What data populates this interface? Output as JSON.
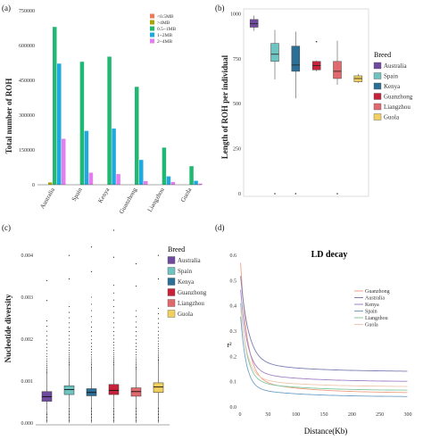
{
  "panels": {
    "a": {
      "label": "(a)",
      "chart_data": {
        "type": "bar",
        "ylabel": "Total number of ROH",
        "ylim": [
          0,
          750000
        ],
        "yticks": [
          "0",
          "150000",
          "300000",
          "450000",
          "600000",
          "750000"
        ],
        "categories": [
          "Australia",
          "Spain",
          "Kenya",
          "Guanzhong",
          "Liangzhou",
          "Guola"
        ],
        "series": [
          {
            "name": "<0.5MB",
            "color": "#f07a55",
            "values": [
              0,
              0,
              0,
              0,
              0,
              0
            ]
          },
          {
            "name": ">4MB",
            "color": "#a6a400",
            "values": [
              10000,
              0,
              0,
              0,
              0,
              0
            ]
          },
          {
            "name": "0.5~1MB",
            "color": "#20b873",
            "values": [
              680000,
              530000,
              552000,
              422000,
              160000,
              80000
            ]
          },
          {
            "name": "1~2MB",
            "color": "#1fa9df",
            "values": [
              522000,
              232000,
              242000,
              107000,
              36000,
              17000
            ]
          },
          {
            "name": "2~4MB",
            "color": "#e57df0",
            "values": [
              198000,
              52000,
              46000,
              16000,
              12000,
              5000
            ]
          }
        ]
      }
    },
    "b": {
      "label": "(b)",
      "chart_data": {
        "type": "box",
        "ylabel": "Length of ROH per individual",
        "ylim": [
          0,
          1000
        ],
        "yticks": [
          "0",
          "250",
          "500",
          "750",
          "1000"
        ],
        "legend_title": "Breed",
        "categories": [
          "Australia",
          "Spain",
          "Kenya",
          "Guanzhong",
          "Liangzhou",
          "Guola"
        ],
        "colors": [
          "#6f4a9e",
          "#6fc3c0",
          "#2c6f96",
          "#c8213a",
          "#e06a6e",
          "#f2d060"
        ],
        "boxes": [
          {
            "min": 905,
            "q1": 925,
            "median": 945,
            "q3": 968,
            "max": 990,
            "outliers": []
          },
          {
            "min": 635,
            "q1": 735,
            "median": 775,
            "q3": 835,
            "max": 910,
            "outliers": [
              0
            ]
          },
          {
            "min": 530,
            "q1": 680,
            "median": 715,
            "q3": 820,
            "max": 900,
            "outliers": [
              0
            ]
          },
          {
            "min": 680,
            "q1": 688,
            "median": 712,
            "q3": 735,
            "max": 740,
            "outliers": [
              845
            ]
          },
          {
            "min": 605,
            "q1": 640,
            "median": 680,
            "q3": 735,
            "max": 850,
            "outliers": [
              0
            ]
          },
          {
            "min": 615,
            "q1": 622,
            "median": 640,
            "q3": 655,
            "max": 665,
            "outliers": []
          }
        ]
      }
    },
    "c": {
      "label": "(c)",
      "chart_data": {
        "type": "box",
        "ylabel": "Nucleotide diversity",
        "ylim": [
          0,
          0.0046
        ],
        "yticks": [
          "0.000",
          "0.001",
          "0.002",
          "0.003",
          "0.004"
        ],
        "legend_title": "Breed",
        "categories": [
          "Australia",
          "Spain",
          "Kenya",
          "Guanzhong",
          "Liangzhou",
          "Guola"
        ],
        "colors": [
          "#6f4a9e",
          "#6fc3c0",
          "#2c6f96",
          "#c8213a",
          "#e06a6e",
          "#f2d060"
        ],
        "boxes": [
          {
            "min": 0.0,
            "q1": 0.00052,
            "median": 0.00063,
            "q3": 0.00075,
            "max": 0.0012,
            "outlier_top": 0.0034
          },
          {
            "min": 0.0,
            "q1": 0.00068,
            "median": 0.0008,
            "q3": 0.00089,
            "max": 0.0014,
            "outlier_top": 0.004
          },
          {
            "min": 0.0,
            "q1": 0.00065,
            "median": 0.00073,
            "q3": 0.00082,
            "max": 0.0013,
            "outlier_top": 0.0042
          },
          {
            "min": 0.0,
            "q1": 0.00068,
            "median": 0.00078,
            "q3": 0.00092,
            "max": 0.0014,
            "outlier_top": 0.0046
          },
          {
            "min": 0.0,
            "q1": 0.00064,
            "median": 0.00075,
            "q3": 0.00084,
            "max": 0.0013,
            "outlier_top": 0.0038
          },
          {
            "min": 0.0,
            "q1": 0.00073,
            "median": 0.00086,
            "q3": 0.00096,
            "max": 0.0015,
            "outlier_top": 0.004
          }
        ]
      }
    },
    "d": {
      "label": "(d)",
      "chart_data": {
        "type": "line",
        "title": "LD decay",
        "xlabel": "Distance(Kb)",
        "ylabel": "r²",
        "xlim": [
          0,
          300
        ],
        "ylim": [
          0,
          0.6
        ],
        "xticks": [
          "0",
          "50",
          "100",
          "150",
          "200",
          "250",
          "300"
        ],
        "yticks": [
          "0.0",
          "0.1",
          "0.2",
          "0.3",
          "0.4",
          "0.5",
          "0.6"
        ],
        "series": [
          {
            "name": "Guanzhong",
            "color": "#f0a080",
            "start": 0.55,
            "end": 0.055,
            "decay": 12
          },
          {
            "name": "Australia",
            "color": "#7a7fb0",
            "start": 0.5,
            "end": 0.14,
            "decay": 14
          },
          {
            "name": "Kenya",
            "color": "#a080c8",
            "start": 0.45,
            "end": 0.1,
            "decay": 12
          },
          {
            "name": "Spain",
            "color": "#6fa0c8",
            "start": 0.35,
            "end": 0.04,
            "decay": 10
          },
          {
            "name": "Liangzhou",
            "color": "#80c8a0",
            "start": 0.4,
            "end": 0.065,
            "decay": 11
          },
          {
            "name": "Guola",
            "color": "#f0c8b0",
            "start": 0.38,
            "end": 0.08,
            "decay": 12
          }
        ]
      }
    }
  }
}
